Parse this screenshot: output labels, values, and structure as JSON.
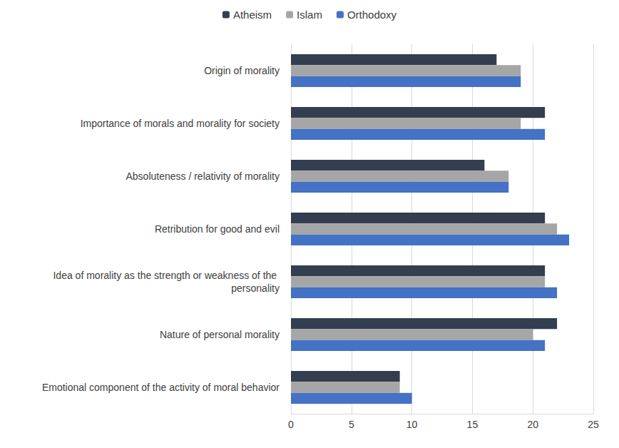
{
  "chart_data": {
    "type": "bar",
    "orientation": "horizontal",
    "categories": [
      "Origin of morality",
      "Importance of morals and morality for society",
      "Absoluteness / relativity of morality",
      "Retribution for good and evil",
      "Idea of morality as the strength or weakness of the personality",
      "Nature of personal morality",
      "Emotional component of the activity of moral behavior"
    ],
    "series": [
      {
        "name": "Atheism",
        "color": "#333f50",
        "values": [
          17,
          21,
          16,
          21,
          21,
          22,
          9
        ]
      },
      {
        "name": "Islam",
        "color": "#a6a6a6",
        "values": [
          19,
          19,
          18,
          22,
          21,
          20,
          9
        ]
      },
      {
        "name": "Orthodoxy",
        "color": "#4472c4",
        "values": [
          19,
          21,
          18,
          23,
          22,
          21,
          10
        ]
      }
    ],
    "xlim": [
      0,
      25
    ],
    "xticks": [
      0,
      5,
      10,
      15,
      20,
      25
    ],
    "grid": true,
    "legend": "top"
  }
}
